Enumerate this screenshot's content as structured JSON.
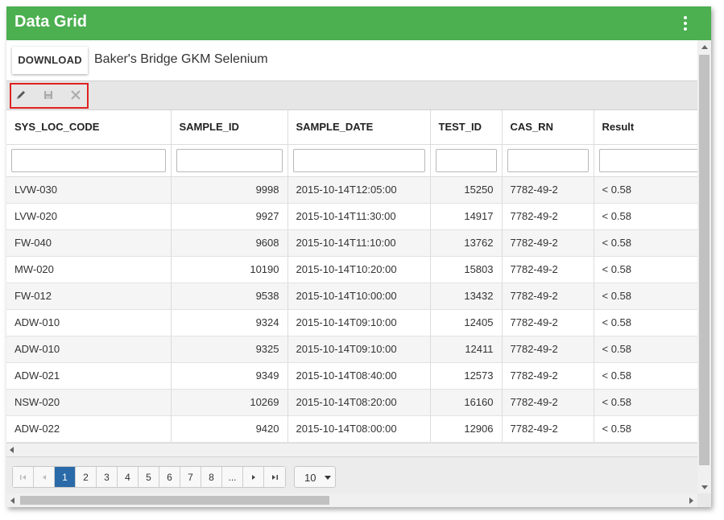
{
  "window": {
    "title": "Data Grid",
    "menu_icon": "kebab-menu-icon"
  },
  "header": {
    "download_label": "DOWNLOAD",
    "dataset_title": "Baker's Bridge GKM Selenium"
  },
  "toolbar": {
    "icons": [
      "pencil-icon",
      "save-icon",
      "close-icon"
    ],
    "highlight_color": "#e02020"
  },
  "grid": {
    "columns": [
      "SYS_LOC_CODE",
      "SAMPLE_ID",
      "SAMPLE_DATE",
      "TEST_ID",
      "CAS_RN",
      "Result"
    ],
    "rows": [
      [
        "LVW-030",
        "9998",
        "2015-10-14T12:05:00",
        "15250",
        "7782-49-2",
        "< 0.58"
      ],
      [
        "LVW-020",
        "9927",
        "2015-10-14T11:30:00",
        "14917",
        "7782-49-2",
        "< 0.58"
      ],
      [
        "FW-040",
        "9608",
        "2015-10-14T11:10:00",
        "13762",
        "7782-49-2",
        "< 0.58"
      ],
      [
        "MW-020",
        "10190",
        "2015-10-14T10:20:00",
        "15803",
        "7782-49-2",
        "< 0.58"
      ],
      [
        "FW-012",
        "9538",
        "2015-10-14T10:00:00",
        "13432",
        "7782-49-2",
        "< 0.58"
      ],
      [
        "ADW-010",
        "9324",
        "2015-10-14T09:10:00",
        "12405",
        "7782-49-2",
        "< 0.58"
      ],
      [
        "ADW-010",
        "9325",
        "2015-10-14T09:10:00",
        "12411",
        "7782-49-2",
        "< 0.58"
      ],
      [
        "ADW-021",
        "9349",
        "2015-10-14T08:40:00",
        "12573",
        "7782-49-2",
        "< 0.58"
      ],
      [
        "NSW-020",
        "10269",
        "2015-10-14T08:20:00",
        "16160",
        "7782-49-2",
        "< 0.58"
      ],
      [
        "ADW-022",
        "9420",
        "2015-10-14T08:00:00",
        "12906",
        "7782-49-2",
        "< 0.58"
      ]
    ]
  },
  "pager": {
    "pages": [
      "1",
      "2",
      "3",
      "4",
      "5",
      "6",
      "7",
      "8",
      "..."
    ],
    "current_page": "1",
    "page_size": "10"
  },
  "colors": {
    "titlebar": "#4caf50",
    "active_page": "#2a6aa8"
  }
}
